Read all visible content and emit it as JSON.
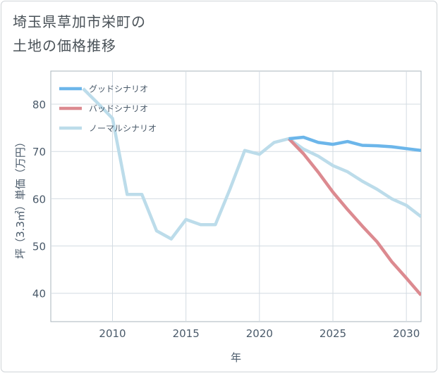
{
  "title": {
    "line1": "埼玉県草加市栄町の",
    "line2": "土地の価格推移"
  },
  "chart_data": {
    "type": "line",
    "title": "埼玉県草加市栄町の土地の価格推移",
    "xlabel": "年",
    "ylabel": "坪（3.3㎡）単価（万円）",
    "xlim": [
      2005.8,
      2031
    ],
    "ylim": [
      34,
      87
    ],
    "x_ticks": [
      2010,
      2015,
      2020,
      2025,
      2030
    ],
    "y_ticks": [
      40,
      50,
      60,
      70,
      80
    ],
    "grid": true,
    "legend_position": "top-left",
    "series": [
      {
        "name": "グッドシナリオ",
        "color": "#6cb6ea",
        "x": [
          2022,
          2023,
          2024,
          2025,
          2026,
          2027,
          2028,
          2029,
          2030,
          2031
        ],
        "values": [
          72.7,
          73.0,
          71.9,
          71.5,
          72.1,
          71.3,
          71.2,
          71.0,
          70.6,
          70.2
        ]
      },
      {
        "name": "バッドシナリオ",
        "color": "#dc8a90",
        "x": [
          2022,
          2023,
          2024,
          2025,
          2026,
          2027,
          2028,
          2029,
          2030,
          2031
        ],
        "values": [
          72.7,
          69.5,
          65.6,
          61.4,
          57.7,
          54.2,
          50.9,
          46.7,
          43.2,
          39.6
        ]
      },
      {
        "name": "ノーマルシナリオ",
        "color": "#bcdcea",
        "x": [
          2008,
          2009,
          2010,
          2011,
          2012,
          2013,
          2014,
          2015,
          2016,
          2017,
          2018,
          2019,
          2020,
          2021,
          2022,
          2023,
          2024,
          2025,
          2026,
          2027,
          2028,
          2029,
          2030,
          2031
        ],
        "values": [
          83.3,
          80.2,
          77.0,
          60.9,
          60.9,
          53.2,
          51.5,
          55.6,
          54.5,
          54.5,
          62.1,
          70.2,
          69.4,
          71.9,
          72.7,
          70.5,
          69.0,
          67.0,
          65.7,
          63.7,
          62.0,
          60.0,
          58.6,
          56.2
        ]
      }
    ]
  }
}
